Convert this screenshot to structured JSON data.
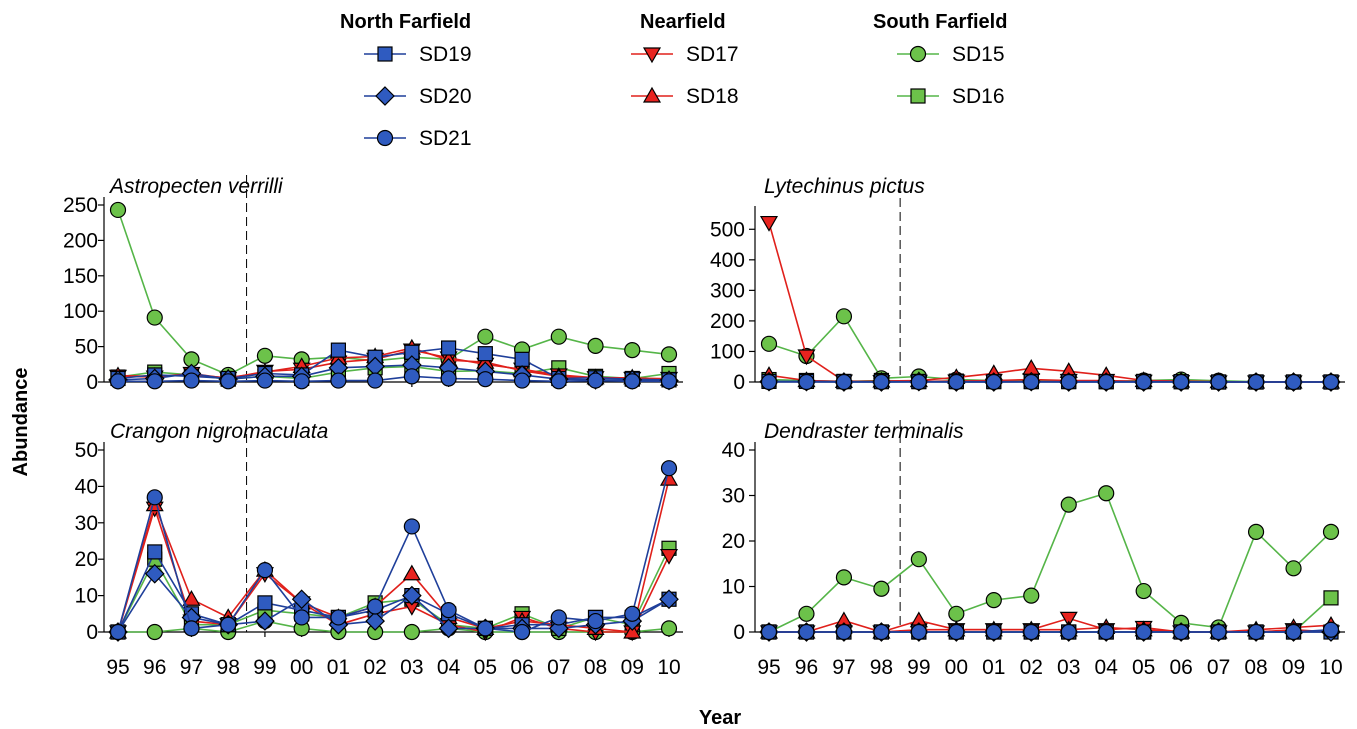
{
  "chart_data": {
    "type": "line",
    "xlabel": "Year",
    "ylabel": "Abundance",
    "categories": [
      "95",
      "96",
      "97",
      "98",
      "99",
      "00",
      "01",
      "02",
      "03",
      "04",
      "05",
      "06",
      "07",
      "08",
      "09",
      "10"
    ],
    "legend": {
      "placement": "top",
      "groups": [
        {
          "name": "North Farfield",
          "series": [
            "SD19",
            "SD20",
            "SD21"
          ]
        },
        {
          "name": "Nearfield",
          "series": [
            "SD17",
            "SD18"
          ]
        },
        {
          "name": "South Farfield",
          "series": [
            "SD15",
            "SD16"
          ]
        }
      ]
    },
    "series_style": {
      "SD19": {
        "marker": "square",
        "line": "#1F3F9A",
        "fill": "#2F5BC0"
      },
      "SD20": {
        "marker": "diamond",
        "line": "#1F3F9A",
        "fill": "#2F5BC0"
      },
      "SD21": {
        "marker": "circle",
        "line": "#1F3F9A",
        "fill": "#2F5BC0"
      },
      "SD17": {
        "marker": "triangle-down",
        "line": "#E0201B",
        "fill": "#E8231F"
      },
      "SD18": {
        "marker": "triangle-up",
        "line": "#E0201B",
        "fill": "#E8231F"
      },
      "SD15": {
        "marker": "circle",
        "line": "#55B548",
        "fill": "#6CC24A"
      },
      "SD16": {
        "marker": "square",
        "line": "#55B548",
        "fill": "#6CC24A"
      }
    },
    "reference_line": {
      "between": [
        "98",
        "99"
      ],
      "style": "dashed"
    },
    "panels": [
      {
        "title": "Astropecten verrilli",
        "ylim": [
          0,
          250
        ],
        "yticks": [
          0,
          50,
          100,
          150,
          200,
          250
        ],
        "series": [
          {
            "name": "SD15",
            "values": [
              243,
              91,
              32,
              10,
              37,
              32,
              35,
              30,
              35,
              32,
              64,
              46,
              64,
              51,
              45,
              39
            ]
          },
          {
            "name": "SD16",
            "values": [
              7,
              14,
              10,
              4,
              8,
              5,
              14,
              20,
              22,
              15,
              16,
              12,
              20,
              8,
              5,
              12
            ]
          },
          {
            "name": "SD17",
            "values": [
              8,
              7,
              12,
              5,
              15,
              18,
              28,
              32,
              45,
              34,
              25,
              18,
              10,
              6,
              5,
              5
            ]
          },
          {
            "name": "SD18",
            "values": [
              9,
              8,
              10,
              6,
              14,
              22,
              34,
              36,
              48,
              31,
              28,
              16,
              8,
              6,
              6,
              4
            ]
          },
          {
            "name": "SD19",
            "values": [
              5,
              10,
              8,
              5,
              12,
              10,
              45,
              35,
              42,
              48,
              40,
              32,
              5,
              6,
              4,
              3
            ]
          },
          {
            "name": "SD20",
            "values": [
              3,
              5,
              12,
              4,
              8,
              8,
              20,
              22,
              24,
              20,
              15,
              10,
              4,
              3,
              3,
              2
            ]
          },
          {
            "name": "SD21",
            "values": [
              1,
              1,
              2,
              1,
              2,
              1,
              2,
              2,
              8,
              5,
              4,
              2,
              1,
              2,
              1,
              1
            ]
          }
        ]
      },
      {
        "title": "Lytechinus pictus",
        "ylim": [
          0,
          550
        ],
        "yticks": [
          0,
          100,
          200,
          300,
          400,
          500
        ],
        "series": [
          {
            "name": "SD15",
            "values": [
              125,
              85,
              215,
              12,
              18,
              8,
              5,
              3,
              2,
              2,
              5,
              8,
              4,
              1,
              0,
              0
            ]
          },
          {
            "name": "SD16",
            "values": [
              8,
              5,
              2,
              5,
              2,
              3,
              2,
              2,
              2,
              1,
              2,
              1,
              0,
              0,
              0,
              0
            ]
          },
          {
            "name": "SD17",
            "values": [
              522,
              85,
              3,
              1,
              2,
              3,
              5,
              8,
              5,
              5,
              2,
              1,
              0,
              0,
              0,
              0
            ]
          },
          {
            "name": "SD18",
            "values": [
              22,
              5,
              2,
              3,
              5,
              15,
              28,
              45,
              35,
              22,
              5,
              3,
              1,
              0,
              0,
              0
            ]
          },
          {
            "name": "SD19",
            "values": [
              2,
              2,
              1,
              1,
              1,
              1,
              1,
              1,
              1,
              1,
              1,
              1,
              0,
              0,
              0,
              0
            ]
          },
          {
            "name": "SD20",
            "values": [
              1,
              1,
              0,
              0,
              1,
              0,
              0,
              1,
              0,
              0,
              0,
              0,
              0,
              0,
              0,
              0
            ]
          },
          {
            "name": "SD21",
            "values": [
              0,
              0,
              0,
              0,
              0,
              0,
              0,
              0,
              0,
              0,
              0,
              0,
              0,
              0,
              0,
              0
            ]
          }
        ]
      },
      {
        "title": "Crangon nigromaculata",
        "ylim": [
          0,
          50
        ],
        "yticks": [
          0,
          10,
          20,
          30,
          40,
          50
        ],
        "series": [
          {
            "name": "SD15",
            "values": [
              0,
              0,
              1,
              0,
              3,
              1,
              0,
              0,
              0,
              1,
              0,
              0,
              0,
              0,
              0,
              1
            ]
          },
          {
            "name": "SD16",
            "values": [
              0,
              20,
              2,
              2,
              6,
              5,
              4,
              8,
              9,
              2,
              1,
              5,
              1,
              4,
              2,
              23
            ]
          },
          {
            "name": "SD17",
            "values": [
              0,
              34,
              3,
              2,
              16,
              8,
              2,
              5,
              7,
              2,
              0,
              4,
              1,
              0,
              0,
              21
            ]
          },
          {
            "name": "SD18",
            "values": [
              0,
              35,
              9,
              4,
              17,
              8,
              4,
              7,
              16,
              4,
              1,
              3,
              2,
              1,
              0,
              42
            ]
          },
          {
            "name": "SD19",
            "values": [
              0,
              22,
              5,
              2,
              8,
              6,
              4,
              6,
              10,
              5,
              1,
              2,
              2,
              4,
              4,
              9
            ]
          },
          {
            "name": "SD20",
            "values": [
              0,
              16,
              4,
              2,
              3,
              9,
              2,
              3,
              10,
              1,
              1,
              1,
              1,
              2,
              3,
              9
            ]
          },
          {
            "name": "SD21",
            "values": [
              0,
              37,
              1,
              2,
              17,
              4,
              4,
              7,
              29,
              6,
              1,
              0,
              4,
              3,
              5,
              45
            ]
          }
        ]
      },
      {
        "title": "Dendraster terminalis",
        "ylim": [
          0,
          40
        ],
        "yticks": [
          0,
          10,
          20,
          30,
          40
        ],
        "series": [
          {
            "name": "SD15",
            "values": [
              0,
              4,
              12,
              9.5,
              16,
              4,
              7,
              8,
              28,
              30.5,
              9,
              2,
              1,
              22,
              14,
              22
            ]
          },
          {
            "name": "SD16",
            "values": [
              0,
              0,
              0,
              0,
              0,
              0,
              0,
              0,
              0,
              0,
              0,
              0,
              0,
              0,
              0,
              7.5
            ]
          },
          {
            "name": "SD17",
            "values": [
              0,
              0,
              0,
              0,
              0.5,
              0.5,
              0.5,
              0.5,
              3,
              0.5,
              1,
              0,
              0,
              0,
              0.5,
              0
            ]
          },
          {
            "name": "SD18",
            "values": [
              0,
              0,
              2.5,
              0,
              2.5,
              0.5,
              0.5,
              0.5,
              0.5,
              1,
              0.5,
              0,
              0,
              0.5,
              1,
              1.5
            ]
          },
          {
            "name": "SD19",
            "values": [
              0,
              0,
              0,
              0,
              0,
              0,
              0,
              0,
              0,
              0,
              0,
              0,
              0,
              0,
              0,
              0
            ]
          },
          {
            "name": "SD20",
            "values": [
              0,
              0,
              0,
              0,
              0,
              0,
              0,
              0,
              0,
              0,
              0,
              0,
              0,
              0,
              0,
              0
            ]
          },
          {
            "name": "SD21",
            "values": [
              0,
              0,
              0,
              0,
              0,
              0,
              0,
              0,
              0,
              0,
              0,
              0,
              0,
              0,
              0,
              0.5
            ]
          }
        ]
      }
    ]
  }
}
